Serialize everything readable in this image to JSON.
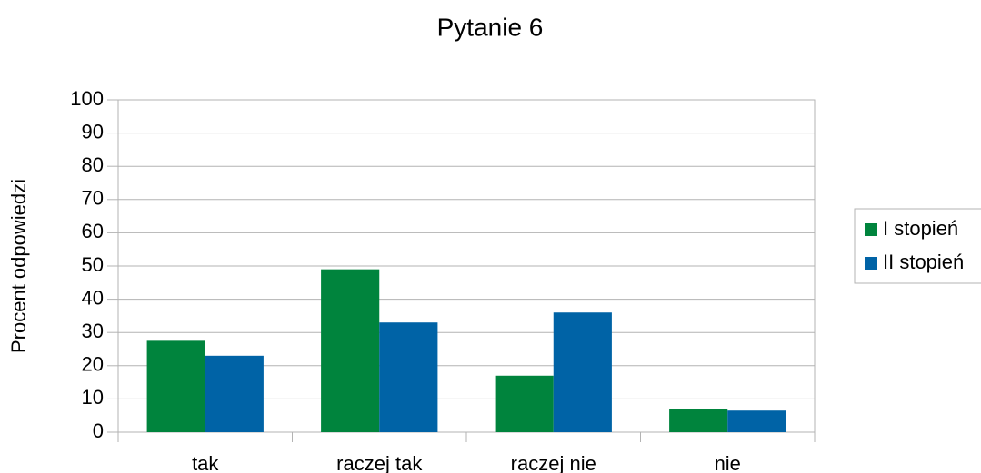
{
  "chart_data": {
    "type": "bar",
    "title": "Pytanie 6",
    "y_label": "Procent odpowiedzi",
    "categories": [
      "tak",
      "raczej tak",
      "raczej nie",
      "nie"
    ],
    "series": [
      {
        "name": "I stopień",
        "color": "#00843d",
        "values": [
          27.5,
          49,
          17,
          7
        ]
      },
      {
        "name": "II stopień",
        "color": "#0063a6",
        "values": [
          23,
          33,
          36,
          6.5
        ]
      }
    ],
    "ylim": [
      0,
      100
    ],
    "yticks": [
      0,
      10,
      20,
      30,
      40,
      50,
      60,
      70,
      80,
      90,
      100
    ],
    "grid": true,
    "legend": "right"
  }
}
